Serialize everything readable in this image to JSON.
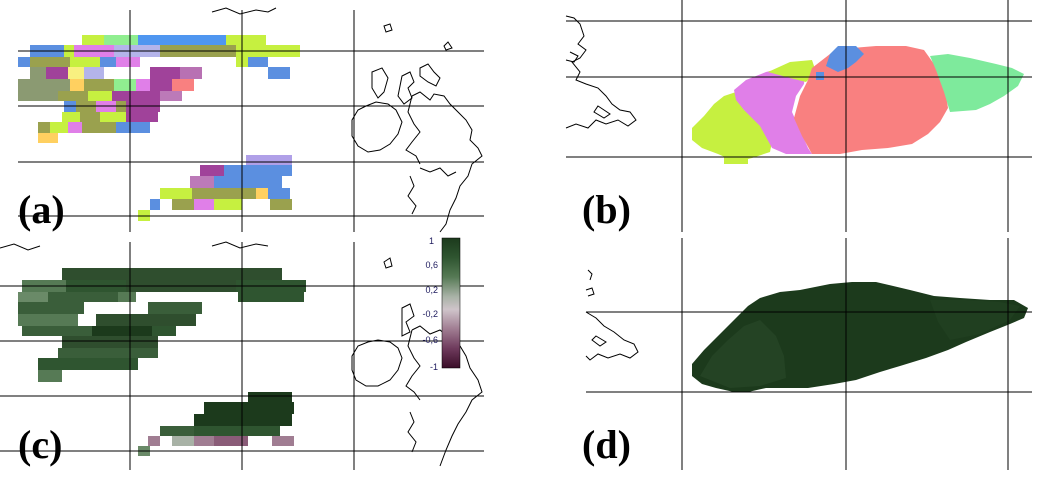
{
  "panels": [
    {
      "id": "a",
      "label": "(a)"
    },
    {
      "id": "b",
      "label": "(b)"
    },
    {
      "id": "c",
      "label": "(c)"
    },
    {
      "id": "d",
      "label": "(d)"
    }
  ],
  "colorbar": {
    "ticks": [
      "1",
      "0,6",
      "0,2",
      "-0,2",
      "-0,6",
      "-1"
    ],
    "range": [
      -1,
      1
    ],
    "colors": [
      "#1c3a1c",
      "#2f5530",
      "#567a55",
      "#a8b2a6",
      "#cfc4ca",
      "#a07d92",
      "#6e3a5c",
      "#3a0d28"
    ]
  },
  "cluster_colors": {
    "blue": "#5b8fe0",
    "cyan_blue": "#4f96f0",
    "lime": "#c6f040",
    "olive": "#9aa14e",
    "green_gray": "#8b9a72",
    "light_green": "#90ee90",
    "light_blue": "#b4b4ea",
    "violet": "#e07fe8",
    "magenta": "#a0429a",
    "salmon": "#f98080",
    "orange": "#ffd060",
    "yellow": "#f8f080",
    "mint": "#7eea9c",
    "lavender": "#b0a0e8",
    "dark_green": "#1c3a1c"
  }
}
